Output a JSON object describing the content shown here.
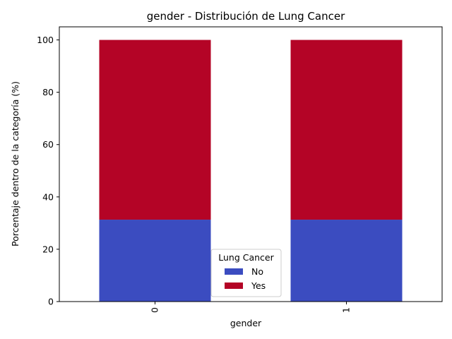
{
  "chart_data": {
    "type": "bar",
    "stacked": true,
    "title": "gender - Distribución de Lung Cancer",
    "xlabel": "gender",
    "ylabel": "Porcentaje dentro de la categoría (%)",
    "categories": [
      "0",
      "1"
    ],
    "series": [
      {
        "name": "No",
        "values": [
          31.3,
          31.3
        ],
        "color": "#3b4cc0"
      },
      {
        "name": "Yes",
        "values": [
          68.7,
          68.7
        ],
        "color": "#b40426"
      }
    ],
    "ylim": [
      0,
      105
    ],
    "yticks": [
      0,
      20,
      40,
      60,
      80,
      100
    ],
    "grid": false,
    "legend": {
      "title": "Lung Cancer",
      "placement": "bottom-center"
    }
  }
}
